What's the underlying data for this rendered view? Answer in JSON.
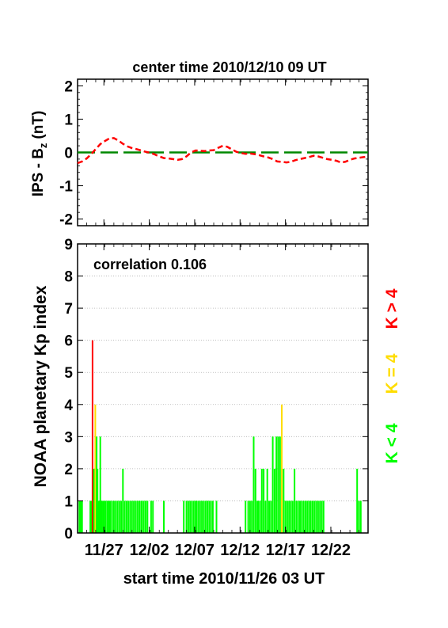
{
  "chart_data": [
    {
      "type": "line",
      "title": "center time 2010/12/10 09 UT",
      "ylabel_main": "IPS - B",
      "ylabel_sub": "z",
      "ylabel_unit": "(nT)",
      "ylim": [
        -2.2,
        2.2
      ],
      "yticks": [
        2,
        1,
        0,
        -1,
        -2
      ],
      "x_range_days": [
        0,
        32
      ],
      "colors": {
        "model": "#ff0000",
        "zero": "#008800"
      },
      "series": [
        {
          "style": "dashed",
          "x": [
            0,
            0.5,
            1,
            1.5,
            2,
            2.5,
            3,
            3.5,
            4,
            4.5,
            5,
            5.5,
            6,
            6.5,
            7,
            7.5,
            8,
            8.5,
            9,
            9.5,
            10,
            10.5,
            11,
            11.5,
            12,
            12.5,
            13,
            13.5,
            14,
            14.5,
            15,
            15.5,
            16,
            16.5,
            17,
            17.5,
            18,
            18.5,
            19,
            19.5,
            20,
            20.5,
            21,
            21.5,
            22,
            22.5,
            23,
            23.5,
            24,
            24.5,
            25,
            25.5,
            26,
            26.5,
            27,
            27.5,
            28,
            28.5,
            29,
            29.5,
            30,
            30.5,
            31,
            31.5,
            32
          ],
          "y": [
            -0.32,
            -0.27,
            -0.18,
            -0.05,
            0.1,
            0.25,
            0.34,
            0.42,
            0.43,
            0.36,
            0.26,
            0.18,
            0.13,
            0.1,
            0.06,
            0.02,
            -0.01,
            -0.06,
            -0.12,
            -0.17,
            -0.18,
            -0.2,
            -0.22,
            -0.2,
            -0.12,
            0.0,
            0.06,
            0.05,
            0.04,
            0.06,
            0.07,
            0.14,
            0.2,
            0.17,
            0.09,
            0.02,
            -0.02,
            -0.04,
            -0.03,
            -0.05,
            -0.08,
            -0.12,
            -0.15,
            -0.2,
            -0.27,
            -0.28,
            -0.3,
            -0.28,
            -0.23,
            -0.2,
            -0.17,
            -0.14,
            -0.1,
            -0.12,
            -0.16,
            -0.2,
            -0.22,
            -0.25,
            -0.3,
            -0.28,
            -0.22,
            -0.18,
            -0.16,
            -0.14,
            -0.12
          ]
        },
        {
          "style": "long-dash",
          "x": [
            0,
            32
          ],
          "y": [
            0,
            0
          ]
        }
      ]
    },
    {
      "type": "bar",
      "annotation": "correlation 0.106",
      "ylabel": "NOAA planetary Kp index",
      "xlabel": "start time 2010/11/26 03 UT",
      "ylim": [
        0,
        9
      ],
      "yticks": [
        9,
        8,
        7,
        6,
        5,
        4,
        3,
        2,
        1,
        0
      ],
      "grid": true,
      "x_range_days": [
        0,
        32
      ],
      "x_ticks": [
        {
          "label": "11/27",
          "day": 2.9
        },
        {
          "label": "12/02",
          "day": 7.9
        },
        {
          "label": "12/07",
          "day": 12.9
        },
        {
          "label": "12/12",
          "day": 17.9
        },
        {
          "label": "12/17",
          "day": 22.9
        },
        {
          "label": "12/22",
          "day": 27.9
        }
      ],
      "legend": [
        "K < 4",
        "K = 4",
        "K > 4"
      ],
      "legend_colors": [
        "#00ff00",
        "#ffdd00",
        "#ff0000"
      ],
      "bar_width_days": 0.125,
      "day": [
        0.2,
        0.35,
        0.5,
        0.65,
        1.4,
        1.5,
        1.65,
        1.8,
        1.95,
        2.1,
        2.2,
        2.35,
        2.5,
        2.65,
        2.8,
        2.95,
        3.1,
        3.3,
        3.45,
        3.6,
        3.8,
        4.0,
        4.2,
        4.4,
        4.6,
        4.8,
        5.0,
        5.2,
        5.4,
        5.6,
        5.8,
        6.0,
        6.2,
        6.4,
        6.6,
        6.8,
        7.0,
        7.1,
        7.3,
        7.5,
        7.7,
        8.1,
        8.3,
        9.5,
        11.7,
        12.0,
        12.2,
        12.4,
        12.6,
        12.8,
        13.0,
        13.1,
        13.3,
        13.5,
        13.7,
        13.9,
        14.1,
        14.3,
        14.5,
        14.7,
        14.9,
        15.3,
        18.5,
        18.8,
        19.0,
        19.2,
        19.4,
        19.6,
        19.8,
        19.9,
        20.1,
        20.3,
        20.5,
        20.7,
        20.9,
        21.1,
        21.3,
        21.5,
        21.7,
        21.9,
        22.1,
        22.3,
        22.5,
        22.7,
        22.9,
        23.1,
        23.3,
        23.5,
        23.7,
        23.9,
        24.1,
        24.3,
        24.5,
        24.7,
        24.9,
        25.1,
        25.3,
        25.5,
        25.7,
        25.9,
        26.1,
        26.3,
        26.5,
        26.7,
        26.9,
        27.1,
        30.8,
        31.0,
        31.2
      ],
      "kp": [
        1,
        1,
        1,
        0,
        1,
        1,
        6,
        2,
        4,
        3,
        2,
        1,
        3,
        1,
        1,
        1,
        1,
        1,
        1,
        1,
        1,
        1,
        1,
        1,
        1,
        1,
        2,
        1,
        1,
        1,
        1,
        1,
        1,
        1,
        1,
        1,
        1,
        1,
        1,
        1,
        1,
        1,
        1,
        1,
        1,
        1,
        1,
        1,
        1,
        1,
        1,
        1,
        1,
        1,
        1,
        1,
        1,
        1,
        1,
        1,
        1,
        1,
        1,
        1,
        1,
        1,
        3,
        2,
        1,
        1,
        1,
        2,
        2,
        1,
        2,
        1,
        1,
        3,
        2,
        3,
        3,
        3,
        4,
        2,
        1,
        1,
        1,
        1,
        1,
        2,
        1,
        1,
        1,
        1,
        1,
        1,
        1,
        1,
        1,
        1,
        1,
        1,
        1,
        1,
        1,
        1,
        2,
        1,
        1
      ]
    }
  ]
}
